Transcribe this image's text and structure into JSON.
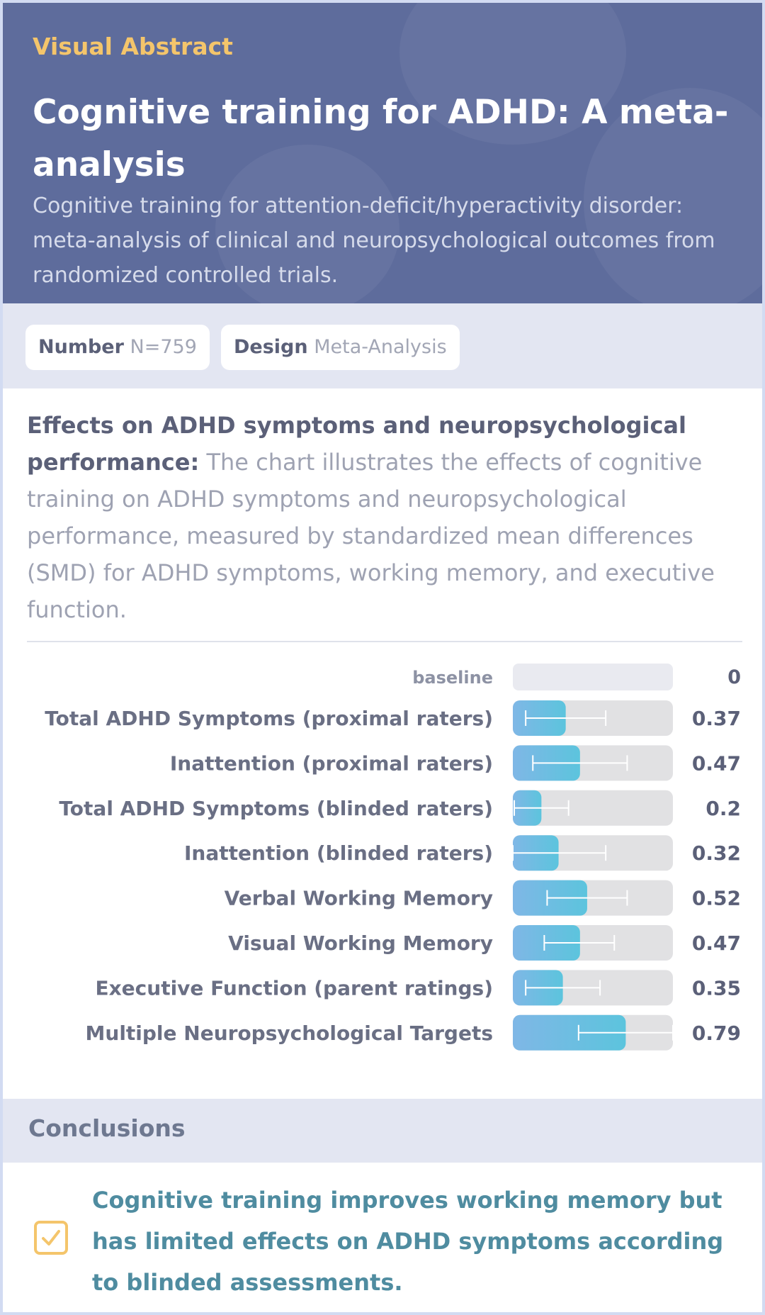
{
  "header": {
    "kicker": "Visual Abstract",
    "title": "Cognitive training for ADHD: A meta-analysis",
    "subtitle": "Cognitive training for attention-deficit/hyperactivity disorder: meta-analysis of clinical and neuropsychological outcomes from randomized controlled trials."
  },
  "meta": {
    "number_key": "Number",
    "number_value": "N=759",
    "design_key": "Design",
    "design_value": "Meta-Analysis"
  },
  "description": {
    "lead": "Effects on ADHD symptoms and neuropsychological performance:",
    "body": " The chart illustrates the effects of cognitive training on ADHD symptoms and neuropsychological performance, measured by standardized mean differences (SMD) for ADHD symptoms, working memory, and executive function."
  },
  "chart_data": {
    "type": "bar",
    "orientation": "horizontal",
    "baseline": {
      "label": "baseline",
      "value": 0
    },
    "categories": [
      "Total ADHD Symptoms (proximal raters)",
      "Inattention (proximal raters)",
      "Total ADHD Symptoms (blinded raters)",
      "Inattention (blinded raters)",
      "Verbal Working Memory",
      "Visual Working Memory",
      "Executive Function (parent ratings)",
      "Multiple Neuropsychological Targets"
    ],
    "values": [
      0.37,
      0.47,
      0.2,
      0.32,
      0.52,
      0.47,
      0.35,
      0.79
    ],
    "value_labels": [
      "0.37",
      "0.47",
      "0.2",
      "0.32",
      "0.52",
      "0.47",
      "0.35",
      "0.79"
    ],
    "ci_low": [
      0.09,
      0.14,
      0.01,
      0.0,
      0.24,
      0.22,
      0.09,
      0.46
    ],
    "ci_high": [
      0.65,
      0.8,
      0.39,
      0.65,
      0.8,
      0.71,
      0.61,
      1.12
    ],
    "xlim": [
      0,
      1.12
    ],
    "colors": {
      "bar": "#5cc4dd",
      "bar_edge": "#7fb7e6",
      "track": "#e1e1e3",
      "baseline_track": "#e9eaf0",
      "whisker": "#ffffff"
    }
  },
  "conclusions": {
    "heading": "Conclusions",
    "icon": "checkbox-icon",
    "text": "Cognitive training improves working memory but has limited effects on ADHD symptoms according to blinded assessments."
  }
}
